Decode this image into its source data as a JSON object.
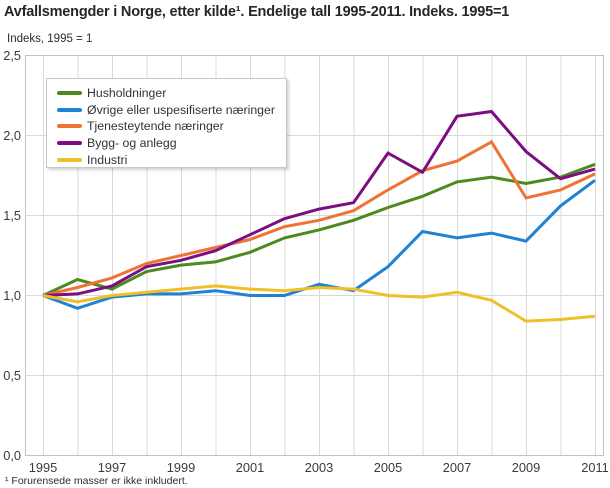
{
  "header": {
    "title": "Avfallsmengder i Norge, etter kilde¹. Endelige tall 1995-2011. Indeks. 1995=1",
    "subtitle": "Indeks, 1995 = 1"
  },
  "footnote": "¹ Forurensede masser er ikke inkludert.",
  "colors": {
    "grid": "#d9d9d9",
    "frame": "#c2c2c2",
    "tick_text": "#3b3b3b",
    "green": "#4c8a20",
    "blue": "#1f82d2",
    "orange": "#ee7335",
    "purple": "#7b0e80",
    "yellow": "#eec029"
  },
  "chart_data": {
    "type": "line",
    "x": [
      1995,
      1996,
      1997,
      1998,
      1999,
      2000,
      2001,
      2002,
      2003,
      2004,
      2005,
      2006,
      2007,
      2008,
      2009,
      2010,
      2011
    ],
    "x_ticks": [
      1995,
      1997,
      1999,
      2001,
      2003,
      2005,
      2007,
      2009,
      2011
    ],
    "x_tick_labels": [
      "1995",
      "1997",
      "1999",
      "2001",
      "2003",
      "2005",
      "2007",
      "2009",
      "2011"
    ],
    "y_ticks": [
      0,
      0.5,
      1.0,
      1.5,
      2.0,
      2.5
    ],
    "y_tick_labels": [
      "0,0",
      "0,5",
      "1,0",
      "1,5",
      "2,0",
      "2,5"
    ],
    "ylim": [
      0,
      2.5
    ],
    "grid": true,
    "legend_position": "top-left-inside",
    "series": [
      {
        "id": "husholdninger",
        "name": "Husholdninger",
        "color": "#4c8a20",
        "values": [
          1.0,
          1.1,
          1.04,
          1.15,
          1.19,
          1.21,
          1.27,
          1.36,
          1.41,
          1.47,
          1.55,
          1.62,
          1.71,
          1.74,
          1.7,
          1.74,
          1.82
        ]
      },
      {
        "id": "ovrige-uspesifiserte-naeringer",
        "name": "Øvrige eller uspesifiserte næringer",
        "color": "#1f82d2",
        "values": [
          1.0,
          0.92,
          0.99,
          1.01,
          1.01,
          1.03,
          1.0,
          1.0,
          1.07,
          1.03,
          1.18,
          1.4,
          1.36,
          1.39,
          1.34,
          1.56,
          1.72
        ]
      },
      {
        "id": "tjenesteytende-naeringer",
        "name": "Tjenesteytende næringer",
        "color": "#ee7335",
        "values": [
          1.0,
          1.05,
          1.11,
          1.2,
          1.25,
          1.3,
          1.35,
          1.43,
          1.47,
          1.53,
          1.66,
          1.78,
          1.84,
          1.96,
          1.61,
          1.66,
          1.76
        ]
      },
      {
        "id": "bygg-og-anlegg",
        "name": "Bygg- og anlegg",
        "color": "#7b0e80",
        "values": [
          1.0,
          1.01,
          1.06,
          1.18,
          1.22,
          1.28,
          1.38,
          1.48,
          1.54,
          1.58,
          1.89,
          1.77,
          2.12,
          2.15,
          1.9,
          1.73,
          1.79
        ]
      },
      {
        "id": "industri",
        "name": "Industri",
        "color": "#eec029",
        "values": [
          1.0,
          0.96,
          1.0,
          1.02,
          1.04,
          1.06,
          1.04,
          1.03,
          1.05,
          1.04,
          1.0,
          0.99,
          1.02,
          0.97,
          0.84,
          0.85,
          0.87
        ]
      }
    ]
  }
}
